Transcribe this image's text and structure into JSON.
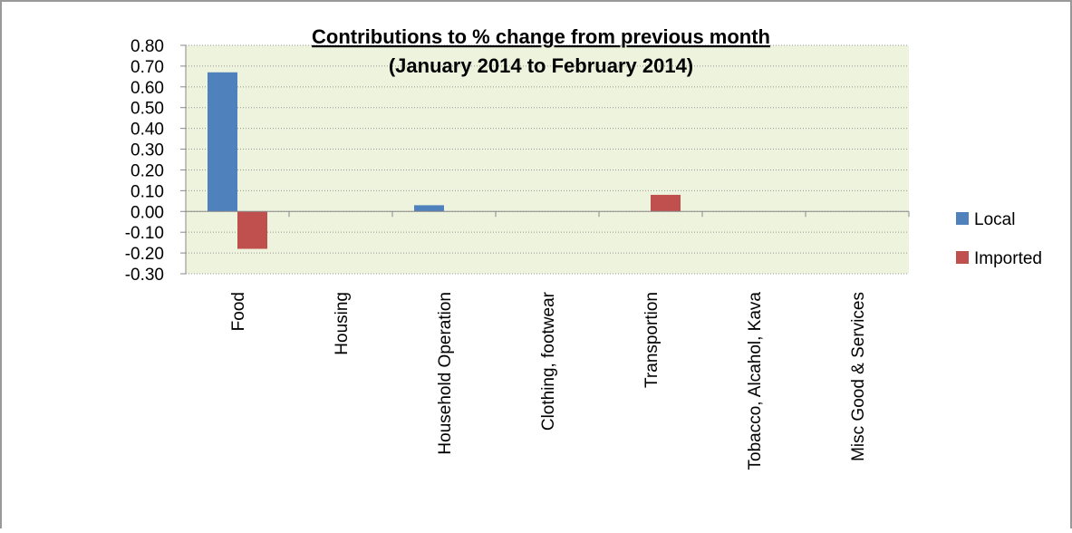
{
  "chart_data": {
    "type": "bar",
    "title": "Contributions to % change from previous month",
    "subtitle": "(January 2014 to February 2014)",
    "categories": [
      "Food",
      "Housing",
      "Household Operation",
      "Clothing, footwear",
      "Transportion",
      "Tobacco, Alcahol, Kava",
      "Misc Good & Services"
    ],
    "series": [
      {
        "name": "Local",
        "color": "#4f81bd",
        "values": [
          0.67,
          0,
          0.03,
          0,
          0,
          0,
          0
        ]
      },
      {
        "name": "Imported",
        "color": "#c0504d",
        "values": [
          -0.18,
          0,
          0,
          0,
          0.08,
          0,
          0
        ]
      }
    ],
    "ylim": [
      -0.3,
      0.8
    ],
    "yticks": [
      {
        "value": -0.3,
        "label": "-0.30"
      },
      {
        "value": -0.2,
        "label": "-0.20"
      },
      {
        "value": -0.1,
        "label": "-0.10"
      },
      {
        "value": 0,
        "label": "0.00"
      },
      {
        "value": 0.1,
        "label": "0.10"
      },
      {
        "value": 0.2,
        "label": "0.20"
      },
      {
        "value": 0.3,
        "label": "0.30"
      },
      {
        "value": 0.4,
        "label": "0.40"
      },
      {
        "value": 0.5,
        "label": "0.50"
      },
      {
        "value": 0.6,
        "label": "0.60"
      },
      {
        "value": 0.7,
        "label": "0.70"
      },
      {
        "value": 0.8,
        "label": "0.80"
      }
    ],
    "grid": true,
    "legend": "right"
  }
}
